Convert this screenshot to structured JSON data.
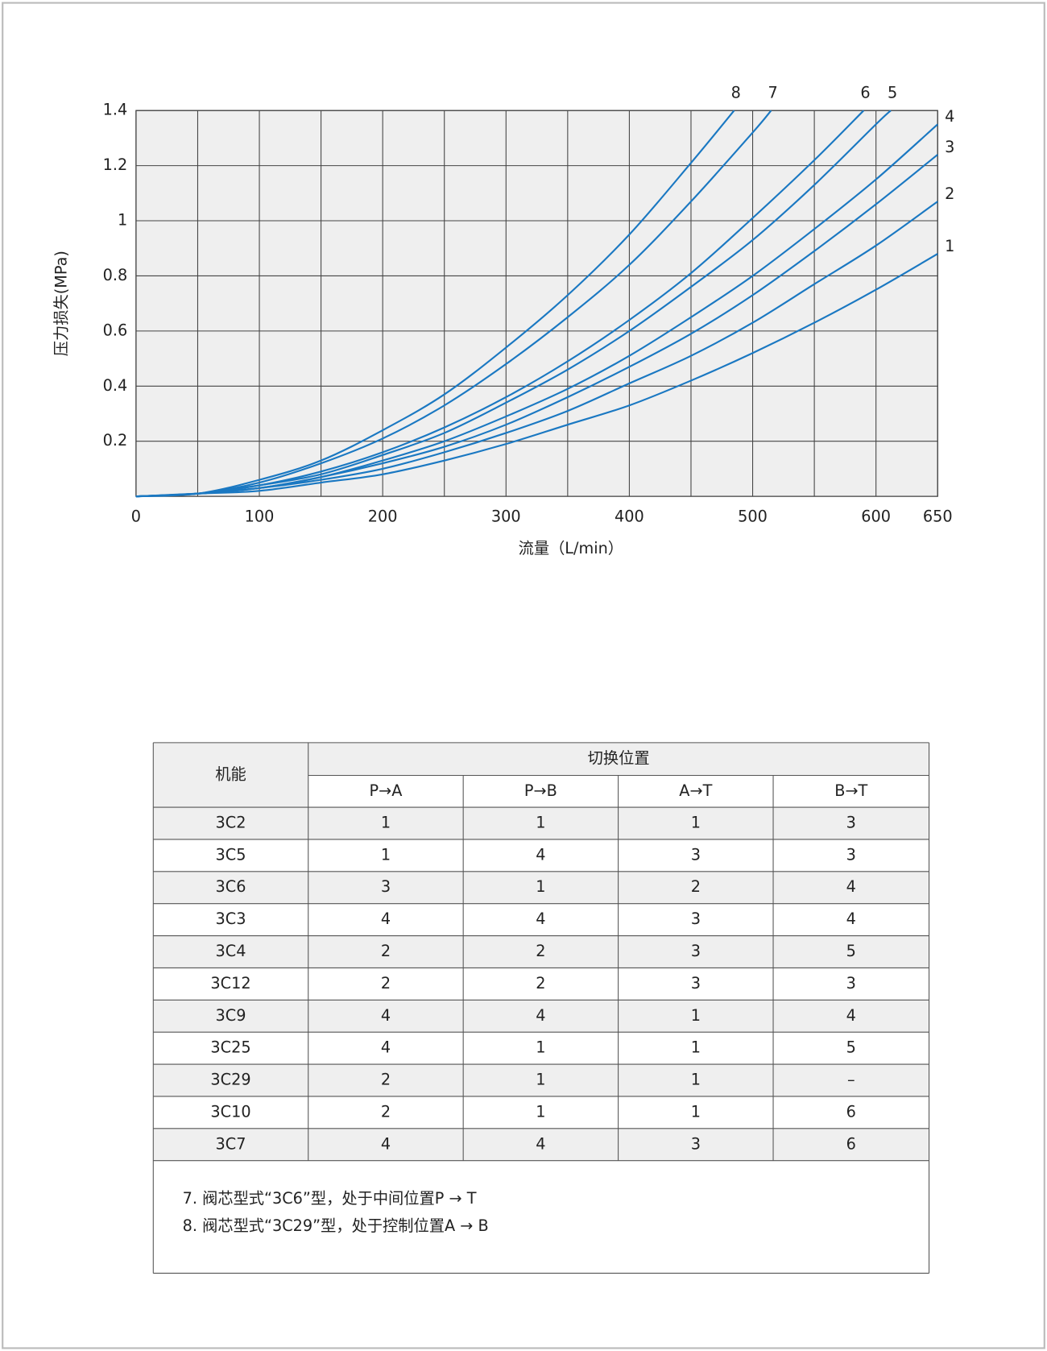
{
  "chart_data": {
    "type": "line",
    "xlabel": "流量（L/min）",
    "ylabel": "压力损失(MPa)",
    "xlim": [
      0,
      650
    ],
    "ylim": [
      0,
      1.4
    ],
    "xticks": [
      0,
      100,
      200,
      300,
      400,
      500,
      600,
      650
    ],
    "x_minor_ticks": [
      50,
      150,
      250,
      350,
      450,
      550
    ],
    "yticks": [
      0.2,
      0.4,
      0.6,
      0.8,
      1.0,
      1.2,
      1.4
    ],
    "grid": true,
    "color": "#1a78c2",
    "series": [
      {
        "name": "1",
        "x": [
          0,
          50,
          100,
          150,
          200,
          250,
          300,
          350,
          400,
          450,
          500,
          550,
          600,
          650
        ],
        "values": [
          0,
          0.01,
          0.02,
          0.05,
          0.08,
          0.13,
          0.19,
          0.26,
          0.33,
          0.42,
          0.52,
          0.63,
          0.75,
          0.88
        ]
      },
      {
        "name": "2",
        "x": [
          0,
          50,
          100,
          150,
          200,
          250,
          300,
          350,
          400,
          450,
          500,
          550,
          600,
          650
        ],
        "values": [
          0,
          0.01,
          0.03,
          0.06,
          0.1,
          0.16,
          0.23,
          0.31,
          0.41,
          0.51,
          0.63,
          0.77,
          0.91,
          1.07
        ]
      },
      {
        "name": "3",
        "x": [
          0,
          50,
          100,
          150,
          200,
          250,
          300,
          350,
          400,
          450,
          500,
          550,
          600,
          650
        ],
        "values": [
          0,
          0.01,
          0.03,
          0.07,
          0.12,
          0.18,
          0.26,
          0.36,
          0.47,
          0.59,
          0.73,
          0.89,
          1.06,
          1.24
        ]
      },
      {
        "name": "4",
        "x": [
          0,
          50,
          100,
          150,
          200,
          250,
          300,
          350,
          400,
          450,
          500,
          550,
          600,
          650
        ],
        "values": [
          0,
          0.01,
          0.03,
          0.07,
          0.13,
          0.2,
          0.29,
          0.39,
          0.51,
          0.65,
          0.8,
          0.97,
          1.15,
          1.35
        ]
      },
      {
        "name": "5",
        "x": [
          0,
          50,
          100,
          150,
          200,
          250,
          300,
          350,
          400,
          450,
          500,
          550,
          600,
          612
        ],
        "values": [
          0,
          0.01,
          0.04,
          0.08,
          0.15,
          0.23,
          0.34,
          0.46,
          0.6,
          0.76,
          0.93,
          1.13,
          1.35,
          1.4
        ]
      },
      {
        "name": "6",
        "x": [
          0,
          50,
          100,
          150,
          200,
          250,
          300,
          350,
          400,
          450,
          500,
          550,
          590
        ],
        "values": [
          0,
          0.01,
          0.04,
          0.09,
          0.16,
          0.25,
          0.36,
          0.49,
          0.64,
          0.81,
          1.01,
          1.22,
          1.4
        ]
      },
      {
        "name": "7",
        "x": [
          0,
          50,
          100,
          150,
          200,
          250,
          300,
          350,
          400,
          450,
          500,
          515
        ],
        "values": [
          0,
          0.01,
          0.05,
          0.12,
          0.21,
          0.33,
          0.48,
          0.65,
          0.84,
          1.07,
          1.32,
          1.4
        ]
      },
      {
        "name": "8",
        "x": [
          0,
          50,
          100,
          150,
          200,
          250,
          300,
          350,
          400,
          450,
          485
        ],
        "values": [
          0,
          0.01,
          0.06,
          0.13,
          0.24,
          0.37,
          0.54,
          0.73,
          0.95,
          1.21,
          1.4
        ]
      }
    ]
  },
  "table": {
    "header": "机能",
    "group_header": "切换位置",
    "subheaders": [
      "P→A",
      "P→B",
      "A→T",
      "B→T"
    ],
    "rows": [
      [
        "3C2",
        1,
        1,
        1,
        3
      ],
      [
        "3C5",
        1,
        4,
        3,
        3
      ],
      [
        "3C6",
        3,
        1,
        2,
        4
      ],
      [
        "3C3",
        4,
        4,
        3,
        4
      ],
      [
        "3C4",
        2,
        2,
        3,
        5
      ],
      [
        "3C12",
        2,
        2,
        3,
        3
      ],
      [
        "3C9",
        4,
        4,
        1,
        4
      ],
      [
        "3C25",
        4,
        1,
        1,
        5
      ],
      [
        "3C29",
        2,
        1,
        1,
        "–"
      ],
      [
        "3C10",
        2,
        1,
        1,
        6
      ],
      [
        "3C7",
        4,
        4,
        3,
        6
      ]
    ],
    "notes": [
      "7. 阀芯型式“3C6”型，处于中间位置P → T",
      "8. 阀芯型式“3C29”型，处于控制位置A → B"
    ]
  }
}
